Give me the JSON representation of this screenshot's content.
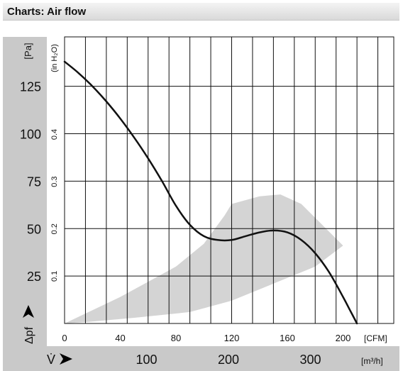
{
  "header": {
    "title": "Charts: Air flow"
  },
  "chart_data": {
    "type": "line",
    "title": "Air flow",
    "x_cfm_ticks": [
      "0",
      "40",
      "80",
      "120",
      "160",
      "200"
    ],
    "x_cfm_unit": "[CFM]",
    "x_m3h_ticks": [
      "100",
      "200",
      "300"
    ],
    "x_m3h_unit": "[m³/h]",
    "x_symbol": "V̇",
    "y_pa_ticks": [
      "25",
      "50",
      "75",
      "100",
      "125"
    ],
    "y_pa_unit": "[Pa]",
    "y_inh2o_ticks": [
      "0.1",
      "0.2",
      "0.3",
      "0.4"
    ],
    "y_inh2o_unit": "(in H₂O)",
    "y_symbol": "Δpf",
    "xlim_cfm": [
      0,
      215
    ],
    "ylim_pa": [
      0,
      140
    ],
    "grid": true,
    "colors": {
      "curve": "#111111",
      "zone": "#d4d4d4",
      "axis_panel": "#c9c9c9",
      "grid": "#111111"
    },
    "series": [
      {
        "x": [
          0,
          10,
          20,
          30,
          40,
          50,
          60,
          70,
          80,
          90,
          100,
          110,
          120,
          130,
          140,
          150,
          160,
          170,
          180,
          190,
          200,
          205,
          210
        ],
        "y": [
          138,
          132,
          125,
          117,
          108,
          98,
          87,
          75,
          62,
          52,
          46,
          44,
          44,
          46,
          48,
          49,
          48,
          44,
          37,
          27,
          14,
          7,
          0
        ]
      }
    ],
    "operating_zone": {
      "x": [
        0,
        40,
        80,
        100,
        115,
        120,
        140,
        155,
        170,
        185,
        200,
        180,
        150,
        120,
        90,
        50,
        20,
        0
      ],
      "y": [
        0,
        14,
        30,
        42,
        57,
        63,
        67,
        68,
        63,
        52,
        41,
        30,
        21,
        12,
        6,
        3,
        1,
        0
      ]
    }
  }
}
